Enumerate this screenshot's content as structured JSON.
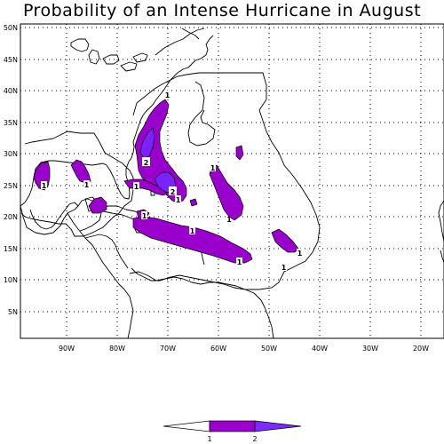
{
  "title": "Probability of an Intense Hurricane in August",
  "map": {
    "lat_labels": [
      "50N",
      "45N",
      "40N",
      "35N",
      "30N",
      "25N",
      "20N",
      "15N",
      "10N",
      "5N"
    ],
    "lon_labels": [
      "90W",
      "80W",
      "70W",
      "60W",
      "50W",
      "40W",
      "30W",
      "20W"
    ],
    "contour_labels": [
      "1",
      "1",
      "1",
      "1",
      "1",
      "1",
      "1",
      "1",
      "1",
      "1",
      "1",
      "1",
      "2",
      "2"
    ]
  },
  "legend": {
    "labels": [
      "1",
      "2"
    ],
    "colors": {
      "low": "#ffffff",
      "mid": "#9b00cc",
      "high": "#7a2cff"
    }
  },
  "colors": {
    "fill_level1": "#9900cc",
    "fill_level2": "#7a22ff",
    "coast": "#000000",
    "grid": "#000000"
  }
}
